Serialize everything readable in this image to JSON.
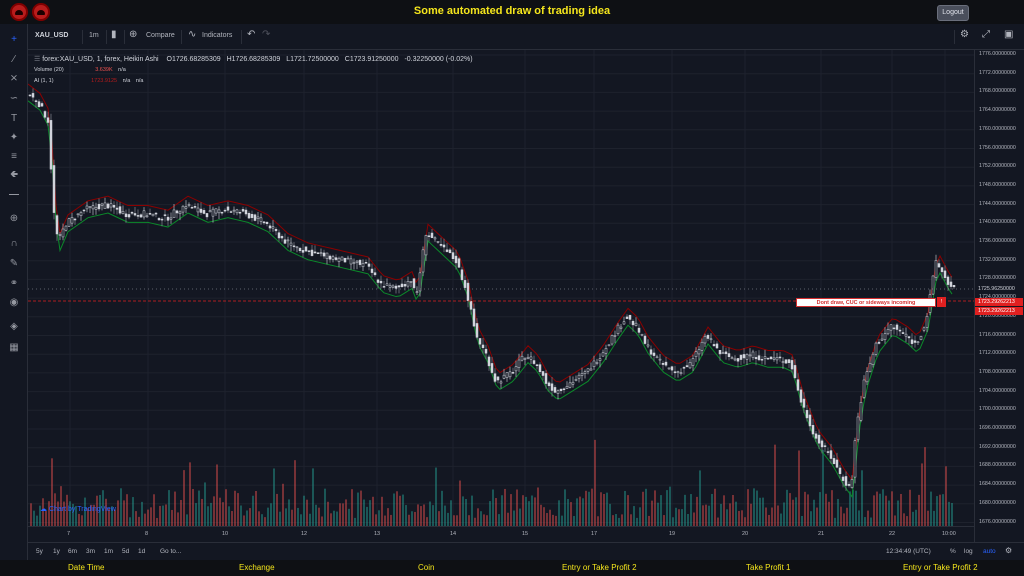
{
  "app": {
    "title": "Some automated draw of trading idea",
    "logout": "Logout"
  },
  "toolbar": {
    "symbol": "XAU_USD",
    "interval": "1m",
    "compare": "Compare",
    "indicators": "Indicators"
  },
  "legend": {
    "symbol_line": "forex:XAU_USD, 1, forex, Heikin Ashi",
    "open": "O1726.68285309",
    "high": "H1726.68285309",
    "low": "L1721.72500000",
    "close": "C1723.91250000",
    "change": "-0.32250000 (-0.02%)",
    "volume_label": "Volume (20)",
    "volume_value": "3.639K",
    "volume_na": "n/a",
    "ai_label": "AI (1, 1)",
    "ai_value": "1723.9125",
    "ai_na1": "n/a",
    "ai_na2": "n/a"
  },
  "price_axis": {
    "labels": [
      "1776.00000000",
      "1772.00000000",
      "1768.00000000",
      "1764.00000000",
      "1760.00000000",
      "1756.00000000",
      "1752.00000000",
      "1748.00000000",
      "1744.00000000",
      "1740.00000000",
      "1736.00000000",
      "1732.00000000",
      "1728.00000000",
      "1724.00000000",
      "1720.00000000",
      "1716.00000000",
      "1712.00000000",
      "1708.00000000",
      "1704.00000000",
      "1700.00000000",
      "1696.00000000",
      "1692.00000000",
      "1688.00000000",
      "1684.00000000",
      "1680.00000000",
      "1676.00000000"
    ],
    "current": "1725.96250000",
    "level1": "1723.29262213",
    "level2": "1723.29262213"
  },
  "drawing": {
    "label": "Dont draw, CUC or sideways incoming",
    "marker": "!"
  },
  "time_axis": {
    "labels": [
      "7",
      "8",
      "10",
      "12",
      "13",
      "14",
      "15",
      "17",
      "19",
      "20",
      "21",
      "22",
      "10:00"
    ]
  },
  "bottom": {
    "ranges": [
      "5y",
      "1y",
      "6m",
      "3m",
      "1m",
      "5d",
      "1d"
    ],
    "goto": "Go to...",
    "clock": "12:34:49 (UTC)",
    "pct": "%",
    "log": "log",
    "auto": "auto"
  },
  "watermark": "Chart by TradingView",
  "footer": [
    "Date Time",
    "Exchange",
    "Coin",
    "Entry or Take Profit 2",
    "Take Profit 1",
    "Entry or Take Profit 2"
  ],
  "colors": {
    "bg": "#131722",
    "accent": "#f5e61c",
    "bull": "#26a69a",
    "bear": "#ef5350",
    "ha_line_up": "#089981",
    "ha_line_dn": "#b71c1c"
  }
}
